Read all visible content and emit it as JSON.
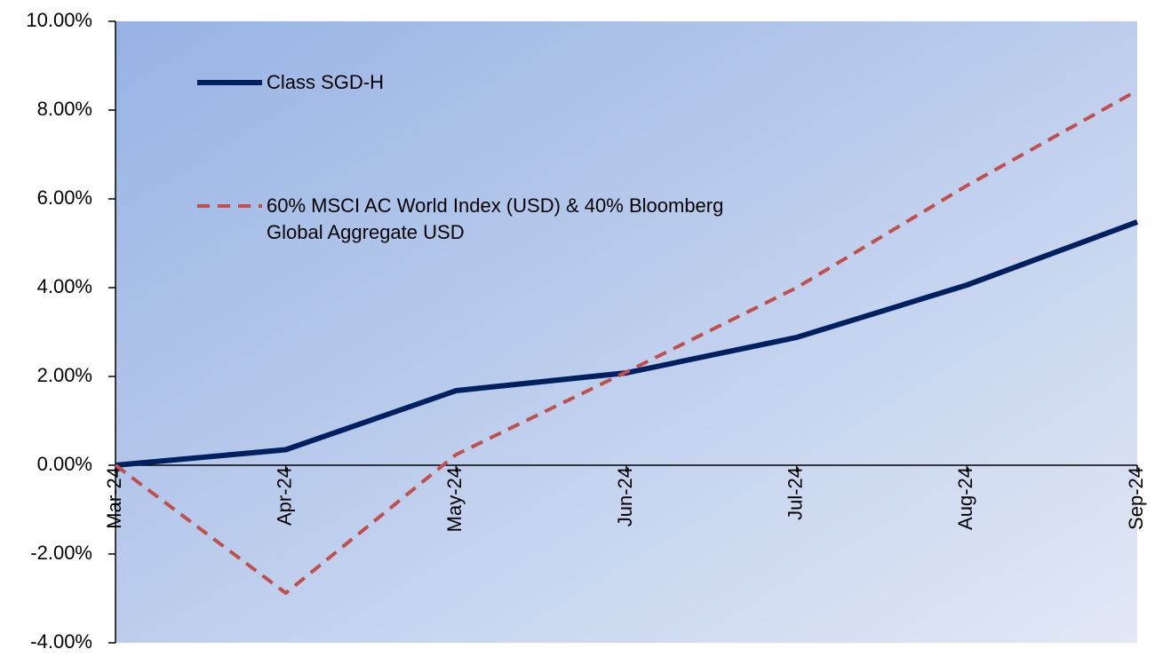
{
  "chart_data": {
    "type": "line",
    "categories": [
      "Mar-24",
      "Apr-24",
      "May-24",
      "Jun-24",
      "Jul-24",
      "Aug-24",
      "Sep-24"
    ],
    "series": [
      {
        "name": "Class SGD-H",
        "color": "#002060",
        "dash": false,
        "values": [
          0,
          0.35,
          1.68,
          2.08,
          2.88,
          4.06,
          5.48
        ]
      },
      {
        "name": "60% MSCI AC World Index (USD) & 40% Bloomberg Global Aggregate USD",
        "color": "#c0504d",
        "dash": true,
        "values": [
          0,
          -2.88,
          0.24,
          2.1,
          4.0,
          6.3,
          8.44
        ]
      }
    ],
    "ylim": [
      -4,
      10
    ],
    "yticks": [
      {
        "value": -4,
        "label": "-4.00%"
      },
      {
        "value": -2,
        "label": "-2.00%"
      },
      {
        "value": 0,
        "label": "0.00%"
      },
      {
        "value": 2,
        "label": "2.00%"
      },
      {
        "value": 4,
        "label": "4.00%"
      },
      {
        "value": 6,
        "label": "6.00%"
      },
      {
        "value": 8,
        "label": "8.00%"
      },
      {
        "value": 10,
        "label": "10.00%"
      }
    ],
    "legend": "upper left"
  }
}
